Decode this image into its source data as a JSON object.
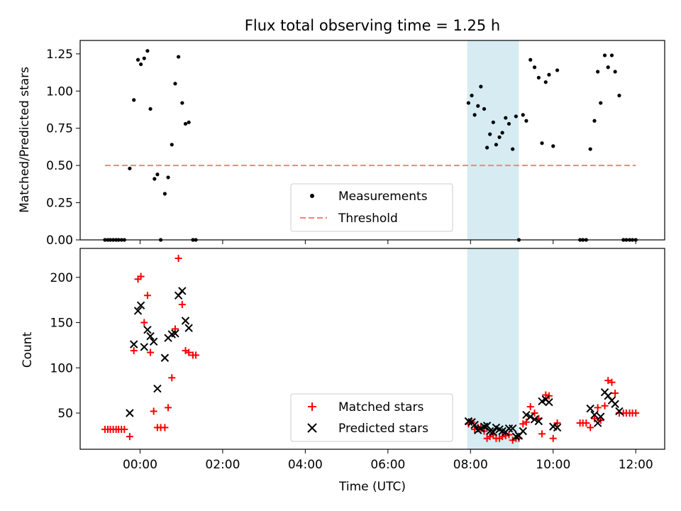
{
  "chart_data": [
    {
      "type": "scatter",
      "title": "Flux total observing time = 1.25 h",
      "xlabel": "",
      "ylabel": "Matched/Predicted stars",
      "ylim": [
        0,
        1.34
      ],
      "yticks": [
        0.0,
        0.25,
        0.5,
        0.75,
        1.0,
        1.25
      ],
      "ytick_labels": [
        "0.00",
        "0.25",
        "0.50",
        "0.75",
        "1.00",
        "1.25"
      ],
      "xlim_hours": [
        -1.45,
        12.7
      ],
      "shaded_span_hours": [
        7.92,
        9.17
      ],
      "threshold": {
        "value": 0.5,
        "x_range_hours": [
          -0.85,
          12.0
        ],
        "color": "#ff7f7f"
      },
      "legend": {
        "position": "lower-center",
        "items": [
          {
            "label": "Measurements",
            "marker": "dot"
          },
          {
            "label": "Threshold",
            "marker": "dashed-line"
          }
        ]
      },
      "series": [
        {
          "name": "Measurements",
          "color": "#000000",
          "points": [
            [
              -0.85,
              0
            ],
            [
              -0.78,
              0
            ],
            [
              -0.72,
              0
            ],
            [
              -0.65,
              0
            ],
            [
              -0.58,
              0
            ],
            [
              -0.52,
              0
            ],
            [
              -0.45,
              0
            ],
            [
              -0.38,
              0
            ],
            [
              -0.25,
              0.48
            ],
            [
              -0.15,
              0.94
            ],
            [
              -0.05,
              1.21
            ],
            [
              0.02,
              1.18
            ],
            [
              0.1,
              1.22
            ],
            [
              0.18,
              1.27
            ],
            [
              0.25,
              0.88
            ],
            [
              0.35,
              0.41
            ],
            [
              0.42,
              0.44
            ],
            [
              0.5,
              0.0
            ],
            [
              0.6,
              0.31
            ],
            [
              0.68,
              0.42
            ],
            [
              0.77,
              0.64
            ],
            [
              0.85,
              1.05
            ],
            [
              0.93,
              1.23
            ],
            [
              1.02,
              0.92
            ],
            [
              1.1,
              0.78
            ],
            [
              1.18,
              0.79
            ],
            [
              1.28,
              0.0
            ],
            [
              1.35,
              0.0
            ],
            [
              7.95,
              0.92
            ],
            [
              8.03,
              0.97
            ],
            [
              8.1,
              0.84
            ],
            [
              8.18,
              0.9
            ],
            [
              8.25,
              1.03
            ],
            [
              8.33,
              0.88
            ],
            [
              8.4,
              0.62
            ],
            [
              8.47,
              0.71
            ],
            [
              8.55,
              0.79
            ],
            [
              8.62,
              0.64
            ],
            [
              8.7,
              0.69
            ],
            [
              8.77,
              0.72
            ],
            [
              8.85,
              0.82
            ],
            [
              8.93,
              0.78
            ],
            [
              9.02,
              0.61
            ],
            [
              9.1,
              0.83
            ],
            [
              9.17,
              0.0
            ],
            [
              9.27,
              0.84
            ],
            [
              9.35,
              0.8
            ],
            [
              9.45,
              1.21
            ],
            [
              9.55,
              1.16
            ],
            [
              9.65,
              1.09
            ],
            [
              9.73,
              0.65
            ],
            [
              9.82,
              1.06
            ],
            [
              9.9,
              1.11
            ],
            [
              10.0,
              0.63
            ],
            [
              10.1,
              1.14
            ],
            [
              10.65,
              0.0
            ],
            [
              10.72,
              0.0
            ],
            [
              10.8,
              0.0
            ],
            [
              10.9,
              0.61
            ],
            [
              11.0,
              0.8
            ],
            [
              11.08,
              1.13
            ],
            [
              11.15,
              0.92
            ],
            [
              11.25,
              1.24
            ],
            [
              11.33,
              1.16
            ],
            [
              11.42,
              1.24
            ],
            [
              11.5,
              1.13
            ],
            [
              11.6,
              0.97
            ],
            [
              11.7,
              0.0
            ],
            [
              11.77,
              0.0
            ],
            [
              11.85,
              0.0
            ],
            [
              11.92,
              0.0
            ],
            [
              12.0,
              0.0
            ]
          ]
        }
      ]
    },
    {
      "type": "scatter",
      "title": "",
      "xlabel": "Time (UTC)",
      "ylabel": "Count",
      "ylim": [
        10,
        232
      ],
      "yticks": [
        50,
        100,
        150,
        200
      ],
      "ytick_labels": [
        "50",
        "100",
        "150",
        "200"
      ],
      "xlim_hours": [
        -1.45,
        12.7
      ],
      "xticks_hours": [
        0,
        2,
        4,
        6,
        8,
        10,
        12
      ],
      "xtick_labels": [
        "00:00",
        "02:00",
        "04:00",
        "06:00",
        "08:00",
        "10:00",
        "12:00"
      ],
      "shaded_span_hours": [
        7.92,
        9.17
      ],
      "legend": {
        "position": "lower-center",
        "items": [
          {
            "label": "Matched stars",
            "marker": "plus",
            "color": "#ff0000"
          },
          {
            "label": "Predicted stars",
            "marker": "x",
            "color": "#000000"
          }
        ]
      },
      "series": [
        {
          "name": "Matched stars",
          "color": "#ff0000",
          "marker": "plus",
          "points": [
            [
              -0.85,
              32
            ],
            [
              -0.78,
              32
            ],
            [
              -0.72,
              32
            ],
            [
              -0.65,
              32
            ],
            [
              -0.58,
              32
            ],
            [
              -0.52,
              32
            ],
            [
              -0.45,
              32
            ],
            [
              -0.38,
              32
            ],
            [
              -0.25,
              24
            ],
            [
              -0.15,
              119
            ],
            [
              -0.05,
              198
            ],
            [
              0.02,
              201
            ],
            [
              0.1,
              150
            ],
            [
              0.18,
              180
            ],
            [
              0.25,
              117
            ],
            [
              0.33,
              52
            ],
            [
              0.42,
              34
            ],
            [
              0.5,
              34
            ],
            [
              0.6,
              34
            ],
            [
              0.68,
              56
            ],
            [
              0.77,
              89
            ],
            [
              0.85,
              143
            ],
            [
              0.93,
              221
            ],
            [
              1.02,
              170
            ],
            [
              1.1,
              119
            ],
            [
              1.18,
              117
            ],
            [
              1.28,
              114
            ],
            [
              1.35,
              114
            ],
            [
              7.95,
              38
            ],
            [
              8.03,
              40
            ],
            [
              8.1,
              32
            ],
            [
              8.18,
              34
            ],
            [
              8.25,
              34
            ],
            [
              8.33,
              30
            ],
            [
              8.4,
              22
            ],
            [
              8.47,
              24
            ],
            [
              8.55,
              26
            ],
            [
              8.62,
              22
            ],
            [
              8.7,
              22
            ],
            [
              8.77,
              24
            ],
            [
              8.85,
              25
            ],
            [
              8.93,
              26
            ],
            [
              9.02,
              20
            ],
            [
              9.1,
              22
            ],
            [
              9.17,
              22
            ],
            [
              9.27,
              38
            ],
            [
              9.35,
              40
            ],
            [
              9.45,
              57
            ],
            [
              9.55,
              50
            ],
            [
              9.65,
              44
            ],
            [
              9.73,
              27
            ],
            [
              9.82,
              70
            ],
            [
              9.9,
              69
            ],
            [
              10.0,
              22
            ],
            [
              10.1,
              39
            ],
            [
              10.65,
              39
            ],
            [
              10.72,
              39
            ],
            [
              10.8,
              39
            ],
            [
              10.9,
              34
            ],
            [
              11.0,
              44
            ],
            [
              11.08,
              56
            ],
            [
              11.15,
              42
            ],
            [
              11.25,
              58
            ],
            [
              11.33,
              86
            ],
            [
              11.42,
              84
            ],
            [
              11.5,
              72
            ],
            [
              11.6,
              50
            ],
            [
              11.7,
              50
            ],
            [
              11.77,
              50
            ],
            [
              11.85,
              50
            ],
            [
              11.92,
              50
            ],
            [
              12.0,
              50
            ]
          ]
        },
        {
          "name": "Predicted stars",
          "color": "#000000",
          "marker": "x",
          "points": [
            [
              -0.25,
              50
            ],
            [
              -0.15,
              126
            ],
            [
              -0.05,
              163
            ],
            [
              0.02,
              169
            ],
            [
              0.1,
              123
            ],
            [
              0.18,
              142
            ],
            [
              0.25,
              135
            ],
            [
              0.33,
              129
            ],
            [
              0.42,
              77
            ],
            [
              0.6,
              111
            ],
            [
              0.68,
              133
            ],
            [
              0.77,
              137
            ],
            [
              0.85,
              138
            ],
            [
              0.93,
              180
            ],
            [
              1.02,
              185
            ],
            [
              1.1,
              152
            ],
            [
              1.18,
              144
            ],
            [
              7.95,
              41
            ],
            [
              8.03,
              40
            ],
            [
              8.1,
              37
            ],
            [
              8.18,
              31
            ],
            [
              8.25,
              33
            ],
            [
              8.33,
              35
            ],
            [
              8.4,
              36
            ],
            [
              8.47,
              30
            ],
            [
              8.55,
              29
            ],
            [
              8.62,
              34
            ],
            [
              8.7,
              32
            ],
            [
              8.77,
              30
            ],
            [
              8.85,
              29
            ],
            [
              8.93,
              33
            ],
            [
              9.02,
              33
            ],
            [
              9.1,
              24
            ],
            [
              9.17,
              25
            ],
            [
              9.27,
              30
            ],
            [
              9.35,
              48
            ],
            [
              9.45,
              46
            ],
            [
              9.55,
              43
            ],
            [
              9.65,
              41
            ],
            [
              9.73,
              63
            ],
            [
              9.82,
              65
            ],
            [
              9.9,
              62
            ],
            [
              10.0,
              35
            ],
            [
              10.1,
              34
            ],
            [
              10.9,
              55
            ],
            [
              11.0,
              48
            ],
            [
              11.08,
              39
            ],
            [
              11.15,
              46
            ],
            [
              11.25,
              73
            ],
            [
              11.33,
              69
            ],
            [
              11.42,
              64
            ],
            [
              11.5,
              60
            ],
            [
              11.6,
              52
            ]
          ]
        }
      ]
    }
  ]
}
